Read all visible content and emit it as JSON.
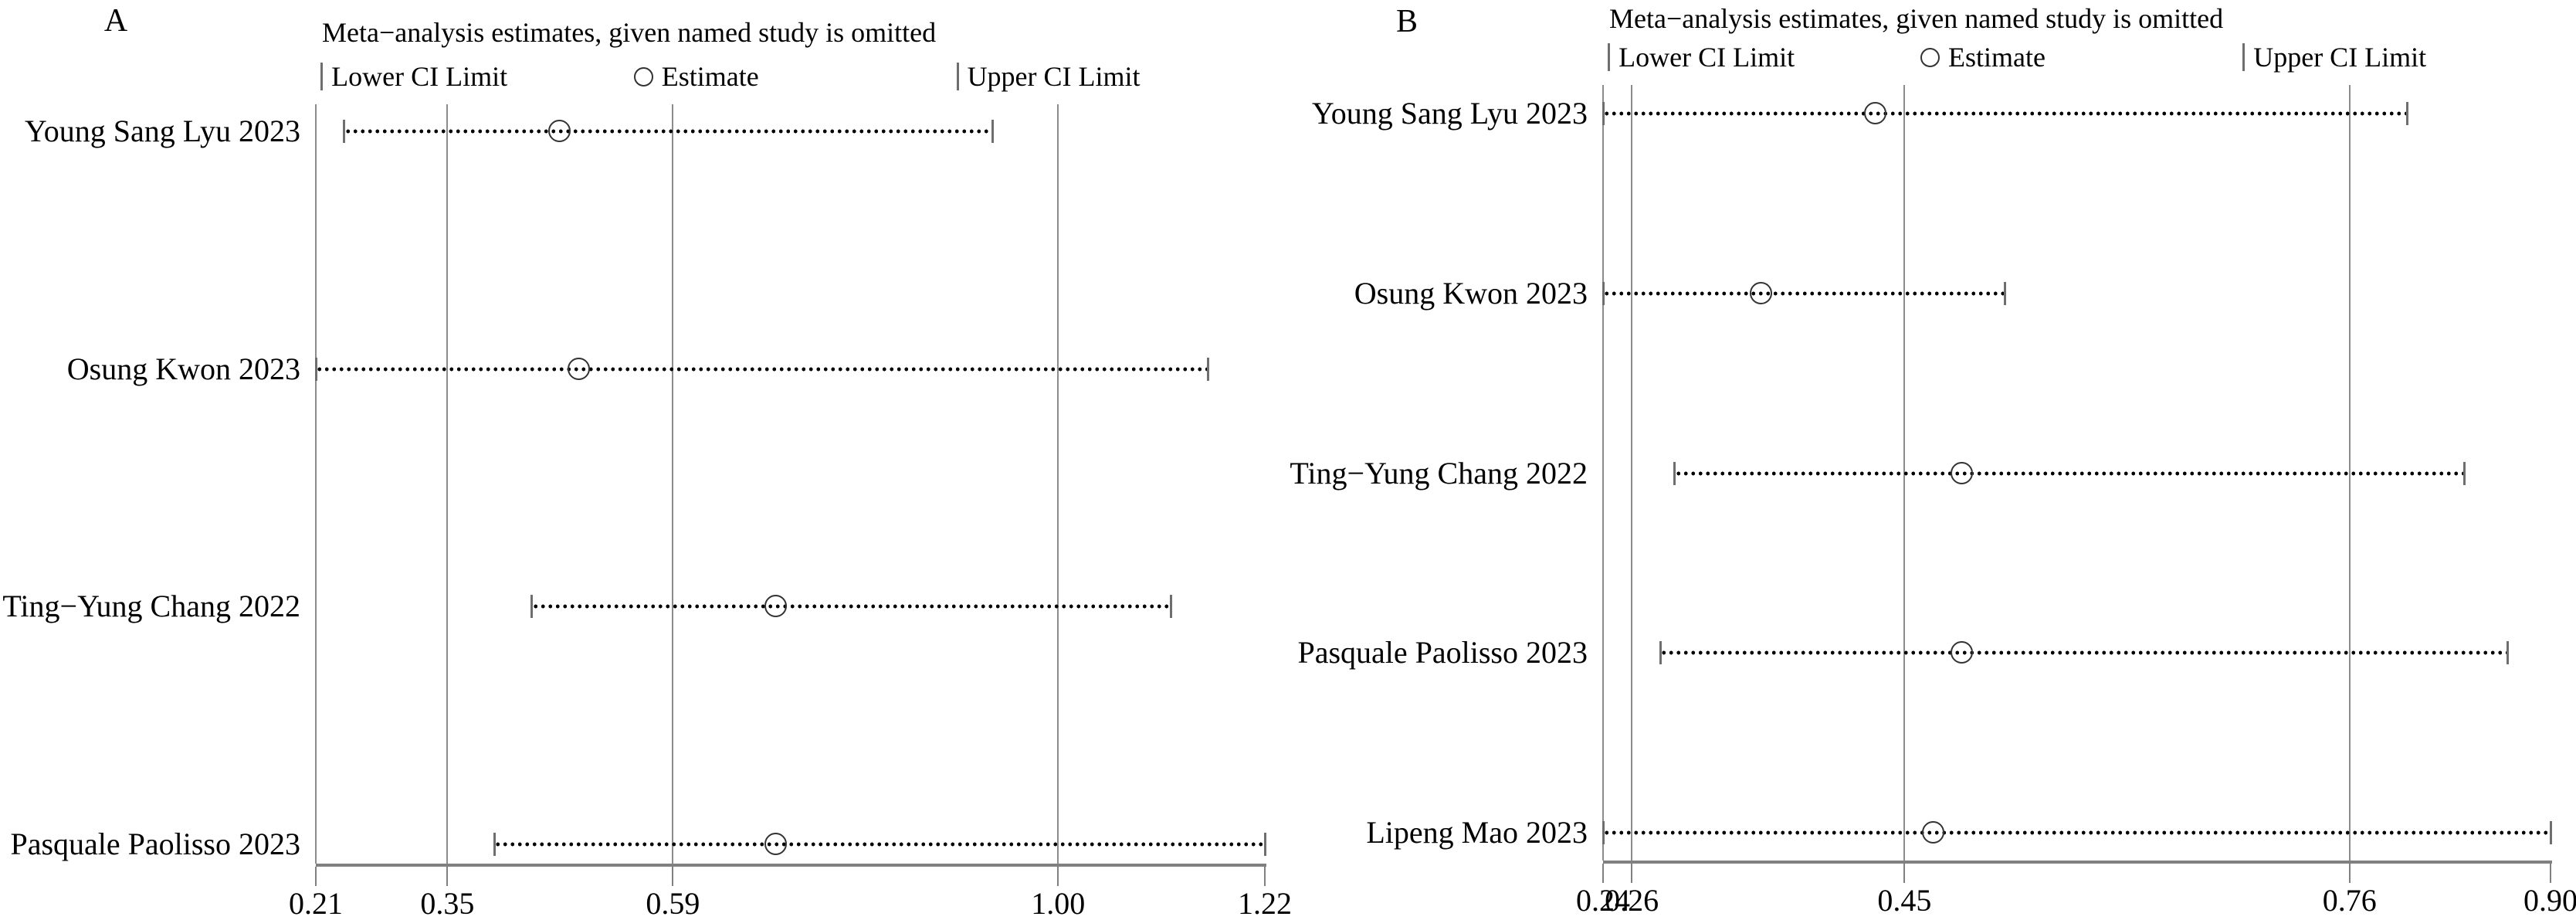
{
  "figure": {
    "background": "#ffffff"
  },
  "colors": {
    "text": "#000000",
    "gridline": "#8c8c8c",
    "axis_line": "#808080",
    "ci_cap": "#6e6e6e",
    "ci_dot": "#000000",
    "estimate_ring": "#333333"
  },
  "chart_data": [
    {
      "type": "scatter",
      "subtype": "leave-one-out-sensitivity-forest",
      "panel_label": "A",
      "title": "Meta−analysis estimates, given named study is omitted",
      "legend": [
        {
          "marker": "bar",
          "label": "Lower CI Limit"
        },
        {
          "marker": "circle",
          "label": "Estimate"
        },
        {
          "marker": "bar",
          "label": "Upper CI Limit"
        }
      ],
      "xlim": [
        0.21,
        1.22
      ],
      "ticks": [
        {
          "value": 0.21,
          "label": "0.21"
        },
        {
          "value": 0.35,
          "label": "0.35"
        },
        {
          "value": 0.59,
          "label": "0.59"
        },
        {
          "value": 1.0,
          "label": "1.00"
        },
        {
          "value": 1.22,
          "label": "1.22"
        }
      ],
      "reference_lines": {
        "lower-ci": 0.35,
        "estimate": 0.59,
        "upper-ci": 1.0
      },
      "studies": [
        {
          "label": "Young Sang Lyu 2023",
          "lower": 0.24,
          "estimate": 0.47,
          "upper": 0.93
        },
        {
          "label": "Osung Kwon 2023",
          "lower": 0.21,
          "estimate": 0.49,
          "upper": 1.16
        },
        {
          "label": "Ting−Yung Chang 2022",
          "lower": 0.44,
          "estimate": 0.7,
          "upper": 1.12
        },
        {
          "label": "Pasquale Paolisso 2023",
          "lower": 0.4,
          "estimate": 0.7,
          "upper": 1.22
        }
      ],
      "layout": {
        "panel_letter_x": 150,
        "panel_letter_y": 27,
        "plot_left": 409,
        "plot_right": 1638,
        "plot_top": 135,
        "axis_y": 1118,
        "title_top": 22,
        "legend_top": 80,
        "row_pad_top": 35,
        "row_pad_bottom": 25,
        "legend_fracs": [
          0.005,
          0.335,
          0.675
        ]
      }
    },
    {
      "type": "scatter",
      "subtype": "leave-one-out-sensitivity-forest",
      "panel_label": "B",
      "title": "Meta−analysis estimates, given named study is omitted",
      "legend": [
        {
          "marker": "bar",
          "label": "Lower CI Limit"
        },
        {
          "marker": "circle",
          "label": "Estimate"
        },
        {
          "marker": "bar",
          "label": "Upper CI Limit"
        }
      ],
      "xlim": [
        0.24,
        0.9
      ],
      "ticks": [
        {
          "value": 0.24,
          "label": "0.24"
        },
        {
          "value": 0.26,
          "label": "0.26"
        },
        {
          "value": 0.45,
          "label": "0.45"
        },
        {
          "value": 0.76,
          "label": "0.76"
        },
        {
          "value": 0.9,
          "label": "0.90"
        }
      ],
      "reference_lines": {
        "lower-ci": 0.26,
        "estimate": 0.45,
        "upper-ci": 0.76
      },
      "studies": [
        {
          "label": "Young Sang Lyu 2023",
          "lower": 0.24,
          "estimate": 0.43,
          "upper": 0.8
        },
        {
          "label": "Osung Kwon 2023",
          "lower": 0.24,
          "estimate": 0.35,
          "upper": 0.52
        },
        {
          "label": "Ting−Yung Chang 2022",
          "lower": 0.29,
          "estimate": 0.49,
          "upper": 0.84
        },
        {
          "label": "Pasquale Paolisso 2023",
          "lower": 0.28,
          "estimate": 0.49,
          "upper": 0.87
        },
        {
          "label": "Lipeng Mao 2023",
          "lower": 0.24,
          "estimate": 0.47,
          "upper": 0.9
        }
      ],
      "layout": {
        "panel_letter_x": 1822,
        "panel_letter_y": 28,
        "plot_left": 2076,
        "plot_right": 3303,
        "plot_top": 110,
        "axis_y": 1114,
        "title_top": 4,
        "legend_top": 55,
        "row_pad_top": 37,
        "row_pad_bottom": 36,
        "legend_fracs": [
          0.005,
          0.335,
          0.675
        ]
      }
    }
  ]
}
